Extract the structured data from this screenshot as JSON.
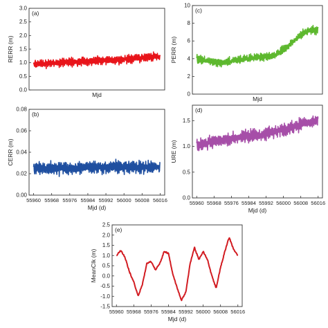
{
  "chart_data": [
    {
      "type": "line",
      "panel_label": "(a)",
      "xlabel": "Mjd",
      "ylabel": "RERR (m)",
      "xlim": [
        55958,
        56018
      ],
      "ylim": [
        0.0,
        3.0
      ],
      "yticks": [
        0.0,
        0.5,
        1.0,
        1.5,
        2.0,
        2.5,
        3.0
      ],
      "ytick_labels": [
        "0.0",
        "0.5",
        "1.0",
        "1.5",
        "2.0",
        "2.5",
        "3.0"
      ],
      "xticks": [],
      "xtick_labels": [],
      "grid": false,
      "series": [
        {
          "color": "#e8141a",
          "style": "noisy-band",
          "x": [
            55960,
            55966,
            55972,
            55978,
            55984,
            55990,
            55996,
            56002,
            56008,
            56014,
            56016
          ],
          "y": [
            0.95,
            0.98,
            1.0,
            1.03,
            1.06,
            1.08,
            1.1,
            1.14,
            1.18,
            1.22,
            1.2
          ],
          "amplitude": 0.15
        }
      ]
    },
    {
      "type": "line",
      "panel_label": "(c)",
      "xlabel": "Mjd",
      "ylabel": "PERR (m)",
      "xlim": [
        55958,
        56018
      ],
      "ylim": [
        0,
        10
      ],
      "yticks": [
        0,
        2,
        4,
        6,
        8,
        10
      ],
      "ytick_labels": [
        "0",
        "2",
        "4",
        "6",
        "8",
        "10"
      ],
      "xticks": [],
      "xtick_labels": [],
      "grid": false,
      "series": [
        {
          "color": "#5db82e",
          "style": "noisy-band",
          "x": [
            55960,
            55964,
            55968,
            55972,
            55976,
            55980,
            55984,
            55988,
            55992,
            55996,
            56000,
            56004,
            56008,
            56012,
            56016
          ],
          "y": [
            4.0,
            3.8,
            3.6,
            3.6,
            3.7,
            3.9,
            4.0,
            4.2,
            4.2,
            4.4,
            5.0,
            5.8,
            6.6,
            7.3,
            7.2
          ],
          "amplitude": 0.45
        }
      ]
    },
    {
      "type": "line",
      "panel_label": "(b)",
      "xlabel": "Mjd (d)",
      "ylabel": "CERR (m)",
      "xlim": [
        55958,
        56018
      ],
      "ylim": [
        0.0,
        0.08
      ],
      "yticks": [
        0.0,
        0.02,
        0.04,
        0.06,
        0.08
      ],
      "ytick_labels": [
        "0.00",
        "0.02",
        "0.04",
        "0.06",
        "0.08"
      ],
      "xticks": [
        55960,
        55968,
        55976,
        55984,
        55992,
        56000,
        56008,
        56016
      ],
      "xtick_labels": [
        "55960",
        "55968",
        "55976",
        "55984",
        "55992",
        "56000",
        "56008",
        "56016"
      ],
      "grid": false,
      "series": [
        {
          "color": "#1f4fa0",
          "style": "noisy-band",
          "x": [
            55960,
            55968,
            55976,
            55984,
            55992,
            56000,
            56008,
            56016
          ],
          "y": [
            0.025,
            0.025,
            0.025,
            0.026,
            0.026,
            0.026,
            0.026,
            0.026
          ],
          "amplitude": 0.006
        }
      ]
    },
    {
      "type": "line",
      "panel_label": "(d)",
      "xlabel": "Mjd (d)",
      "ylabel": "URE (m)",
      "xlim": [
        55958,
        56018
      ],
      "ylim": [
        0.0,
        1.8
      ],
      "yticks": [
        0.0,
        0.5,
        1.0,
        1.5
      ],
      "ytick_labels": [
        "0.0",
        "0.5",
        "1.0",
        "1.5"
      ],
      "xticks": [
        55960,
        55968,
        55976,
        55984,
        55992,
        56000,
        56008,
        56016
      ],
      "xtick_labels": [
        "55960",
        "55968",
        "55976",
        "55984",
        "55992",
        "56000",
        "56008",
        "56016"
      ],
      "grid": false,
      "series": [
        {
          "color": "#a64ea8",
          "style": "noisy-band",
          "x": [
            55960,
            55966,
            55972,
            55978,
            55984,
            55990,
            55996,
            56002,
            56008,
            56014,
            56016
          ],
          "y": [
            1.02,
            1.07,
            1.12,
            1.16,
            1.2,
            1.24,
            1.28,
            1.34,
            1.42,
            1.5,
            1.48
          ],
          "amplitude": 0.12
        }
      ]
    },
    {
      "type": "line",
      "panel_label": "(e)",
      "xlabel": "Mjd (d)",
      "ylabel": "MeanClk (m)",
      "xlim": [
        55958,
        56018
      ],
      "ylim": [
        -1.5,
        2.5
      ],
      "yticks": [
        -1.5,
        -1.0,
        -0.5,
        0.0,
        0.5,
        1.0,
        1.5,
        2.0,
        2.5
      ],
      "ytick_labels": [
        "-1.5",
        "-1.0",
        "-0.5",
        "0.0",
        "0.5",
        "1.0",
        "1.5",
        "2.0",
        "2.5"
      ],
      "xticks": [
        55960,
        55968,
        55976,
        55984,
        55992,
        56000,
        56008,
        56016
      ],
      "xtick_labels": [
        "55960",
        "55968",
        "55976",
        "55984",
        "55992",
        "56000",
        "56008",
        "56016"
      ],
      "grid": false,
      "series": [
        {
          "color": "#d21c22",
          "style": "line",
          "x": [
            55960,
            55962,
            55964,
            55966,
            55968,
            55970,
            55972,
            55974,
            55976,
            55978,
            55980,
            55982,
            55984,
            55986,
            55988,
            55990,
            55992,
            55994,
            55996,
            55998,
            56000,
            56002,
            56004,
            56006,
            56008,
            56010,
            56012,
            56014,
            56016
          ],
          "y": [
            1.0,
            1.25,
            0.9,
            0.2,
            -0.3,
            -1.0,
            -0.4,
            0.6,
            0.7,
            0.3,
            0.6,
            1.2,
            1.1,
            0.1,
            -0.6,
            -1.2,
            -0.8,
            0.6,
            1.4,
            0.8,
            1.2,
            0.8,
            0.0,
            -0.6,
            0.4,
            1.2,
            1.9,
            1.3,
            1.0
          ],
          "amplitude": 0.06
        }
      ]
    }
  ]
}
